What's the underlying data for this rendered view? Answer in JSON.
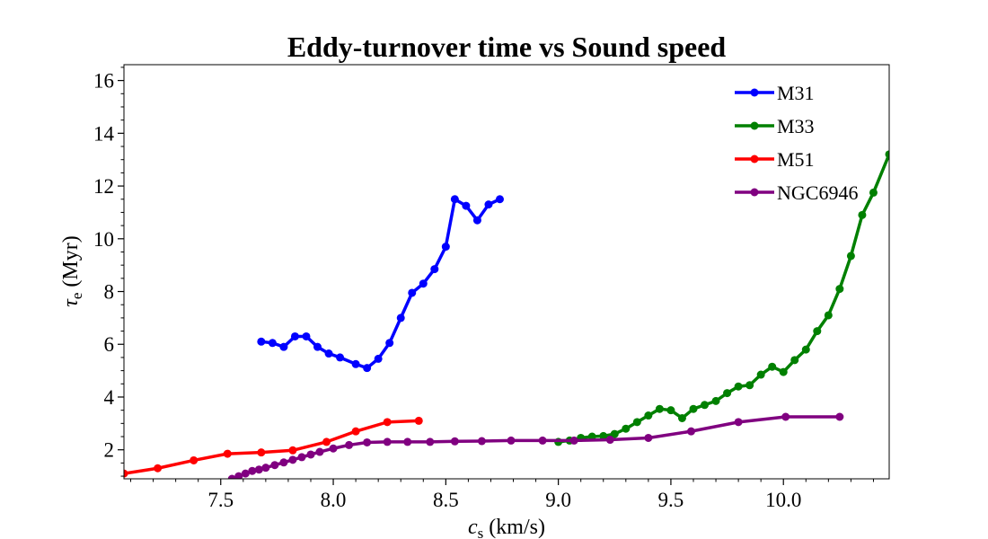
{
  "chart_data": {
    "type": "line",
    "title": "Eddy-turnover time vs Sound speed",
    "xlabel_main": "c",
    "xlabel_sub": "s",
    "xlabel_unit": " (km/s)",
    "ylabel_main": "τ",
    "ylabel_sub": "e",
    "ylabel_unit": " (Myr)",
    "xlim": [
      7.07,
      10.47
    ],
    "ylim": [
      0.9,
      16.6
    ],
    "xticks": [
      7.5,
      8.0,
      8.5,
      9.0,
      9.5,
      10.0
    ],
    "xtick_labels": [
      "7.5",
      "8.0",
      "8.5",
      "9.0",
      "9.5",
      "10.0"
    ],
    "yticks": [
      2,
      4,
      6,
      8,
      10,
      12,
      14,
      16
    ],
    "ytick_labels": [
      "2",
      "4",
      "6",
      "8",
      "10",
      "12",
      "14",
      "16"
    ],
    "grid": false,
    "legend_position": "top-right",
    "series": [
      {
        "name": "M31",
        "color": "#0000ff",
        "x": [
          7.68,
          7.73,
          7.78,
          7.83,
          7.88,
          7.93,
          7.98,
          8.03,
          8.1,
          8.15,
          8.2,
          8.25,
          8.3,
          8.35,
          8.4,
          8.45,
          8.5,
          8.54,
          8.59,
          8.64,
          8.69,
          8.74
        ],
        "y": [
          6.1,
          6.05,
          5.9,
          6.3,
          6.3,
          5.9,
          5.65,
          5.5,
          5.25,
          5.1,
          5.45,
          6.05,
          7.0,
          7.95,
          8.3,
          8.85,
          9.7,
          11.5,
          11.25,
          10.7,
          11.3,
          11.5
        ]
      },
      {
        "name": "M33",
        "color": "#008000",
        "x": [
          9.0,
          9.05,
          9.1,
          9.15,
          9.2,
          9.25,
          9.3,
          9.35,
          9.4,
          9.45,
          9.5,
          9.55,
          9.6,
          9.65,
          9.7,
          9.75,
          9.8,
          9.85,
          9.9,
          9.95,
          10.0,
          10.05,
          10.1,
          10.15,
          10.2,
          10.25,
          10.3,
          10.35,
          10.4,
          10.47
        ],
        "y": [
          2.3,
          2.35,
          2.45,
          2.5,
          2.52,
          2.6,
          2.8,
          3.05,
          3.3,
          3.55,
          3.5,
          3.2,
          3.55,
          3.7,
          3.85,
          4.15,
          4.4,
          4.45,
          4.85,
          5.15,
          4.95,
          5.4,
          5.8,
          6.5,
          7.1,
          8.1,
          9.35,
          10.9,
          11.75,
          13.2
        ]
      },
      {
        "name": "M51",
        "color": "#ff0000",
        "x": [
          7.07,
          7.22,
          7.38,
          7.53,
          7.68,
          7.82,
          7.97,
          8.1,
          8.24,
          8.38
        ],
        "y": [
          1.1,
          1.3,
          1.6,
          1.85,
          1.9,
          1.98,
          2.3,
          2.7,
          3.05,
          3.1
        ]
      },
      {
        "name": "NGC6946",
        "color": "#800080",
        "x": [
          7.55,
          7.58,
          7.61,
          7.64,
          7.67,
          7.7,
          7.74,
          7.78,
          7.82,
          7.86,
          7.9,
          7.94,
          8.0,
          8.07,
          8.15,
          8.24,
          8.33,
          8.43,
          8.54,
          8.66,
          8.79,
          8.93,
          9.07,
          9.23,
          9.4,
          9.59,
          9.8,
          10.01,
          10.25
        ],
        "y": [
          0.9,
          1.0,
          1.1,
          1.2,
          1.25,
          1.32,
          1.42,
          1.52,
          1.62,
          1.72,
          1.82,
          1.92,
          2.05,
          2.18,
          2.28,
          2.3,
          2.3,
          2.3,
          2.32,
          2.33,
          2.35,
          2.35,
          2.35,
          2.38,
          2.45,
          2.7,
          3.05,
          3.25,
          3.25
        ]
      }
    ]
  }
}
